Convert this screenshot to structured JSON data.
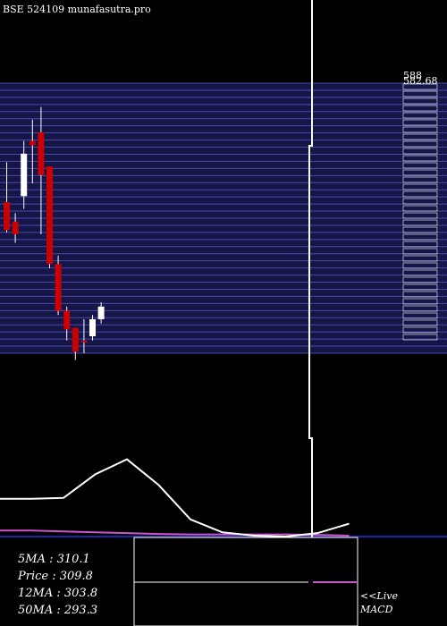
{
  "title": "BSE 524109 munafasutra.pro",
  "chart_data": {
    "type": "candlestick",
    "price_axis": {
      "range": [
        270,
        588
      ],
      "tick_labels": [
        "588",
        "582.68"
      ],
      "extra_ticks_count": 36
    },
    "candles": [
      {
        "o": 448,
        "h": 495,
        "l": 412,
        "c": 415
      },
      {
        "o": 425,
        "h": 435,
        "l": 400,
        "c": 410
      },
      {
        "o": 455,
        "h": 520,
        "l": 440,
        "c": 505
      },
      {
        "o": 520,
        "h": 545,
        "l": 470,
        "c": 515
      },
      {
        "o": 530,
        "h": 560,
        "l": 410,
        "c": 480
      },
      {
        "o": 490,
        "h": 490,
        "l": 370,
        "c": 375
      },
      {
        "o": 375,
        "h": 385,
        "l": 315,
        "c": 320
      },
      {
        "o": 320,
        "h": 325,
        "l": 285,
        "c": 298
      },
      {
        "o": 300,
        "h": 300,
        "l": 262,
        "c": 272
      },
      {
        "o": 285,
        "h": 310,
        "l": 270,
        "c": 283
      },
      {
        "o": 290,
        "h": 315,
        "l": 285,
        "c": 310
      },
      {
        "o": 310,
        "h": 330,
        "l": 305,
        "c": 325
      }
    ],
    "macd": {
      "main": [
        0.88,
        0.88,
        0.9,
        1.45,
        1.8,
        1.2,
        0.4,
        0.1,
        0.02,
        0.0,
        0.08,
        0.3
      ],
      "signal": [
        0.14,
        0.14,
        0.12,
        0.1,
        0.08,
        0.06,
        0.05,
        0.05,
        0.05,
        0.05,
        0.04,
        0.02
      ],
      "zero": 0.0
    },
    "colors": {
      "up": "#ffffff",
      "down": "#cc0000",
      "grid_bg": "#151547",
      "grid_line": "#4a4aa8",
      "macd": "#ffffff",
      "signal": "#cc55cc",
      "zero_line": "#2222aa"
    }
  },
  "stats": [
    {
      "label": "5MA",
      "sep": " : ",
      "value": "310.1"
    },
    {
      "label": "Price",
      "sep": "  : ",
      "value": "309.8"
    },
    {
      "label": "12MA",
      "sep": " : ",
      "value": "303.8"
    },
    {
      "label": "50MA",
      "sep": " : ",
      "value": "293.3"
    }
  ],
  "macd_label": {
    "line1": "<<Live",
    "line2": "MACD"
  }
}
